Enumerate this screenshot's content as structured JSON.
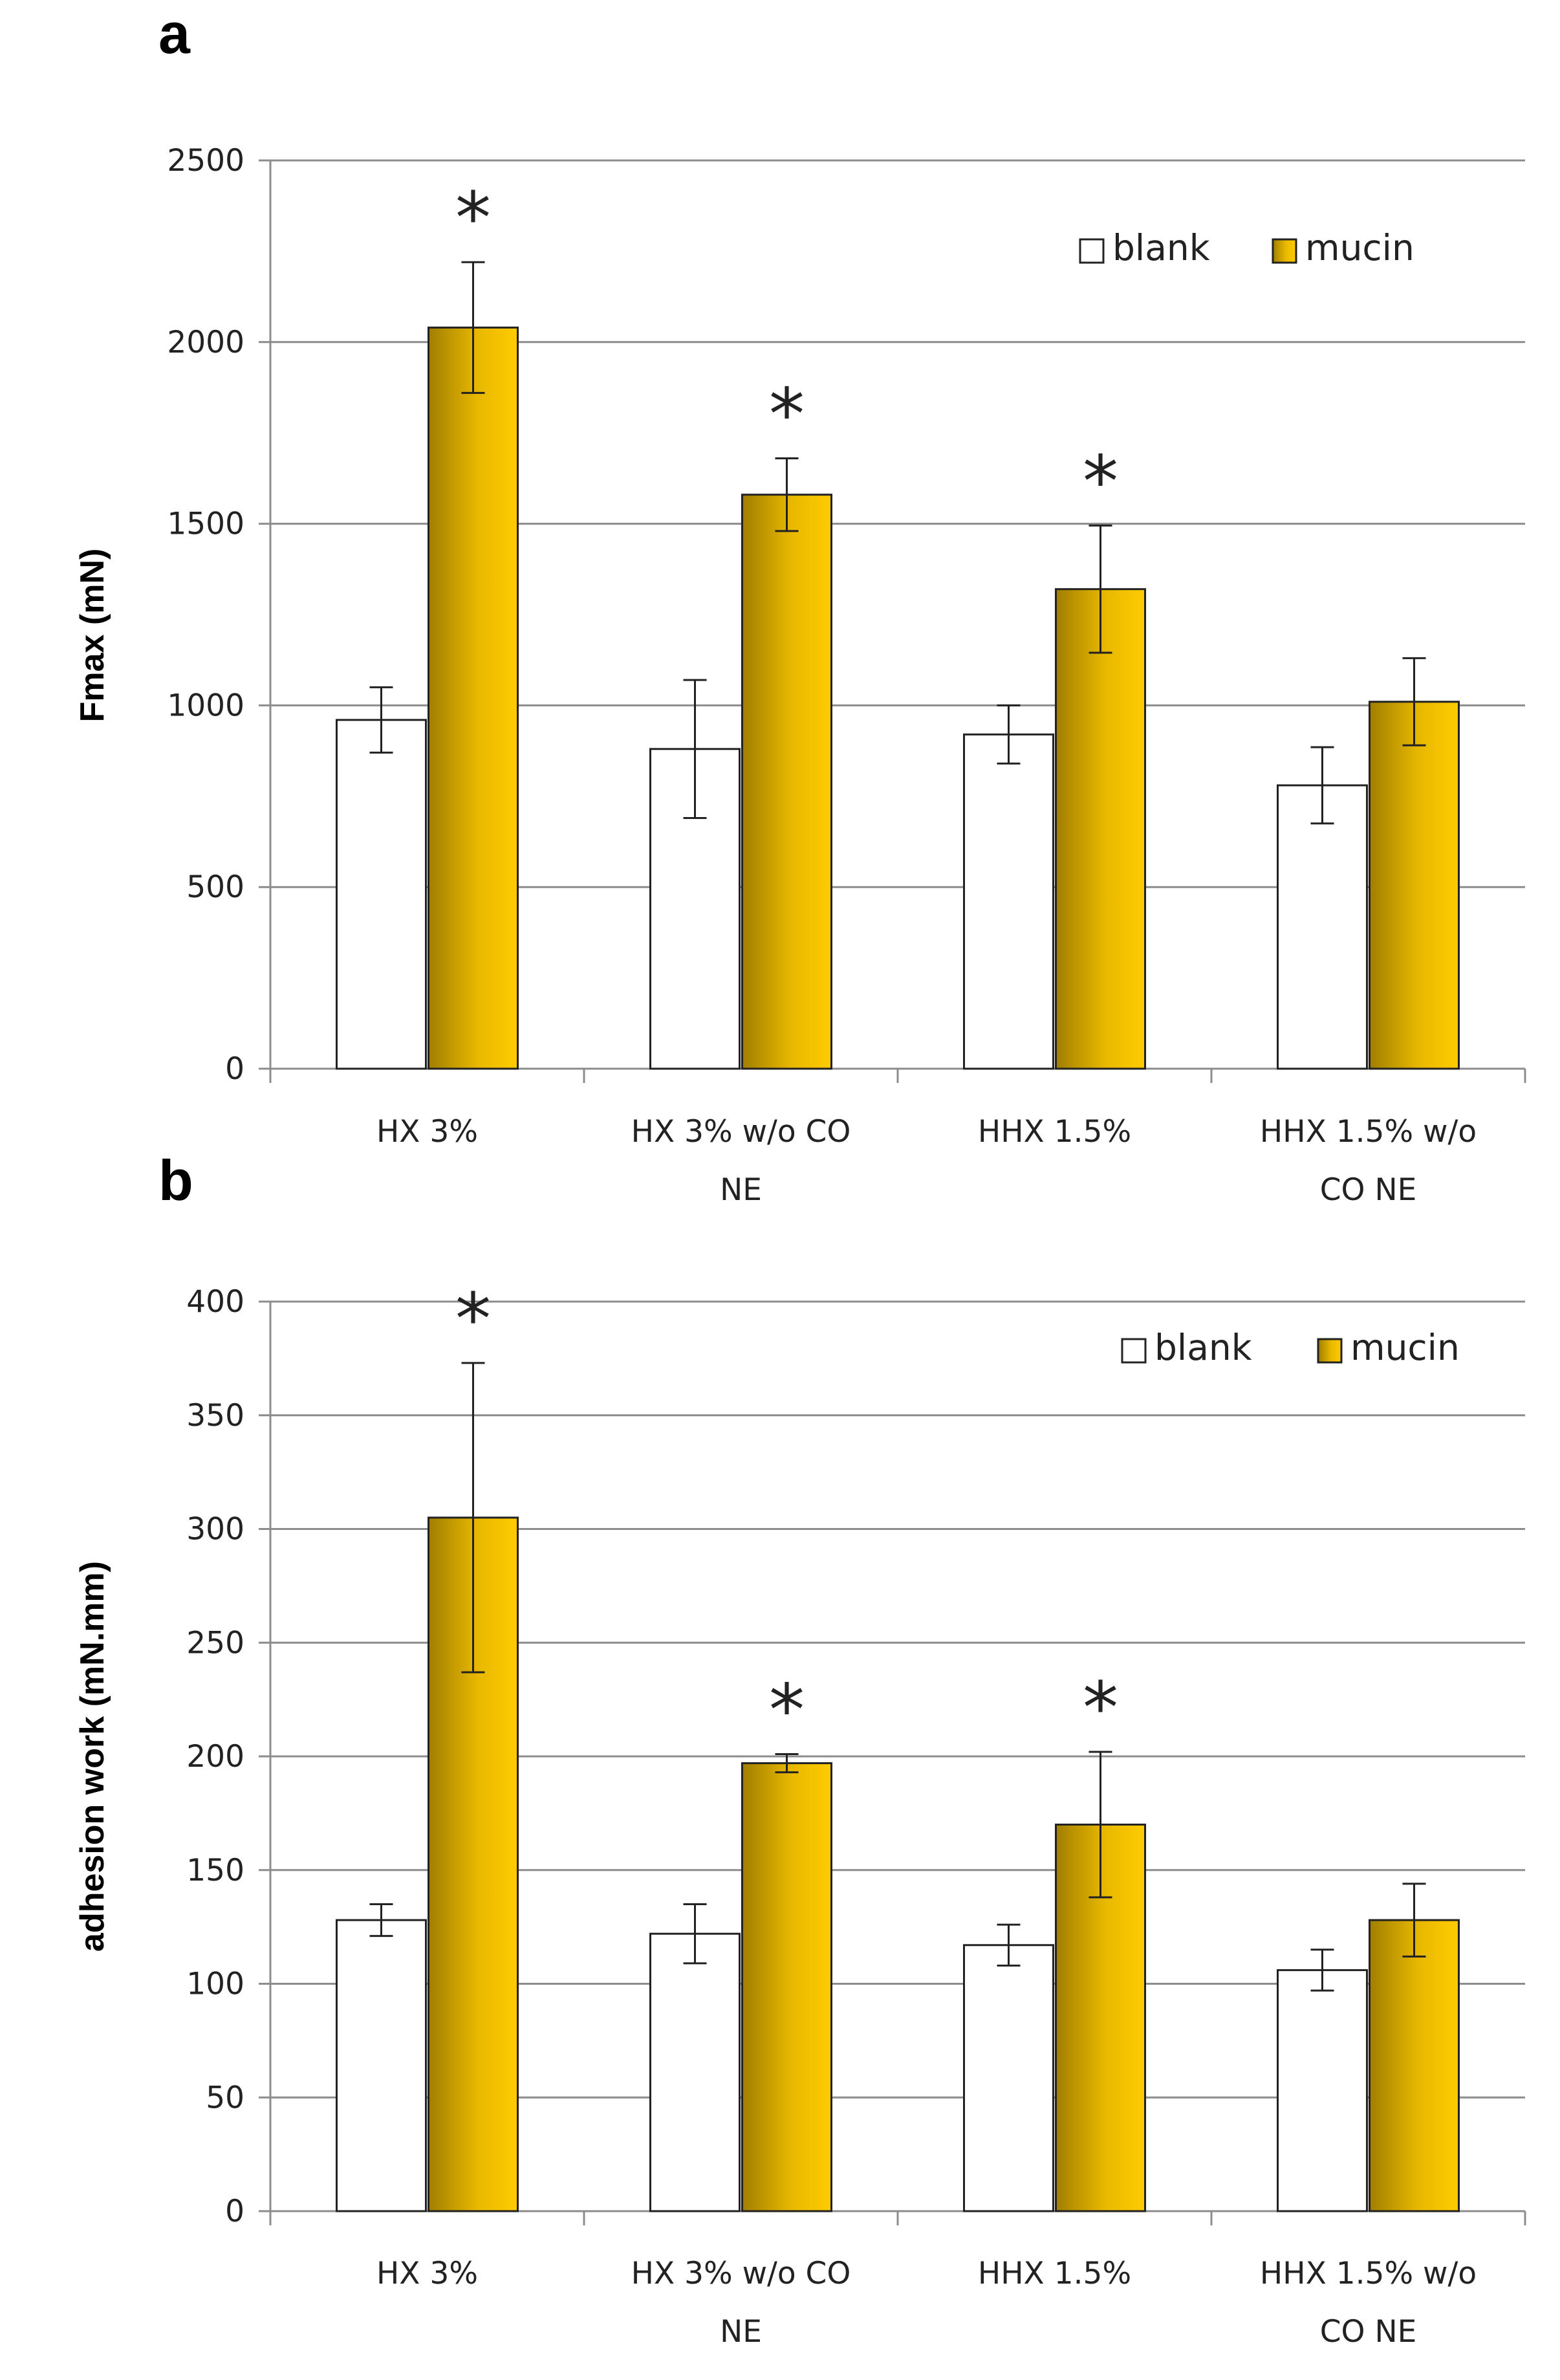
{
  "colors": {
    "blank": "#ffffff",
    "mucin_light": "#ffcc00",
    "mucin_dark": "#a07e00",
    "grid": "#8c8c8c",
    "axis": "#8c8c8c"
  },
  "chart_data": [
    {
      "panel_label": "a",
      "type": "bar",
      "ylabel": "Fmax (mN)",
      "xlabel": "",
      "ylim": [
        0,
        2500
      ],
      "yticks": [
        0,
        500,
        1000,
        1500,
        2000,
        2500
      ],
      "categories": [
        [
          "HX 3%"
        ],
        [
          "HX 3% w/o CO",
          "NE"
        ],
        [
          "HHX 1.5%"
        ],
        [
          "HHX 1.5% w/o",
          "CO NE"
        ]
      ],
      "legend": {
        "position": "top-right",
        "entries": [
          "blank",
          "mucin"
        ]
      },
      "grid": true,
      "series": [
        {
          "name": "blank",
          "values": [
            960,
            880,
            920,
            780
          ],
          "errors": [
            90,
            190,
            80,
            105
          ]
        },
        {
          "name": "mucin",
          "values": [
            2040,
            1580,
            1320,
            1010
          ],
          "errors": [
            180,
            100,
            175,
            120
          ]
        }
      ],
      "annotations": [
        "*",
        "*",
        "*",
        ""
      ]
    },
    {
      "panel_label": "b",
      "type": "bar",
      "ylabel": "adhesion work (mN.mm)",
      "xlabel": "",
      "ylim": [
        0,
        400
      ],
      "yticks": [
        0,
        50,
        100,
        150,
        200,
        250,
        300,
        350,
        400
      ],
      "categories": [
        [
          "HX 3%"
        ],
        [
          "HX 3% w/o CO",
          "NE"
        ],
        [
          "HHX 1.5%"
        ],
        [
          "HHX 1.5% w/o",
          "CO NE"
        ]
      ],
      "legend": {
        "position": "top-right",
        "entries": [
          "blank",
          "mucin"
        ]
      },
      "grid": true,
      "series": [
        {
          "name": "blank",
          "values": [
            128,
            122,
            117,
            106
          ],
          "errors": [
            7,
            13,
            9,
            9
          ]
        },
        {
          "name": "mucin",
          "values": [
            305,
            197,
            170,
            128
          ],
          "errors": [
            68,
            4,
            32,
            16
          ]
        }
      ],
      "annotations": [
        "*",
        "*",
        "*",
        ""
      ]
    }
  ]
}
